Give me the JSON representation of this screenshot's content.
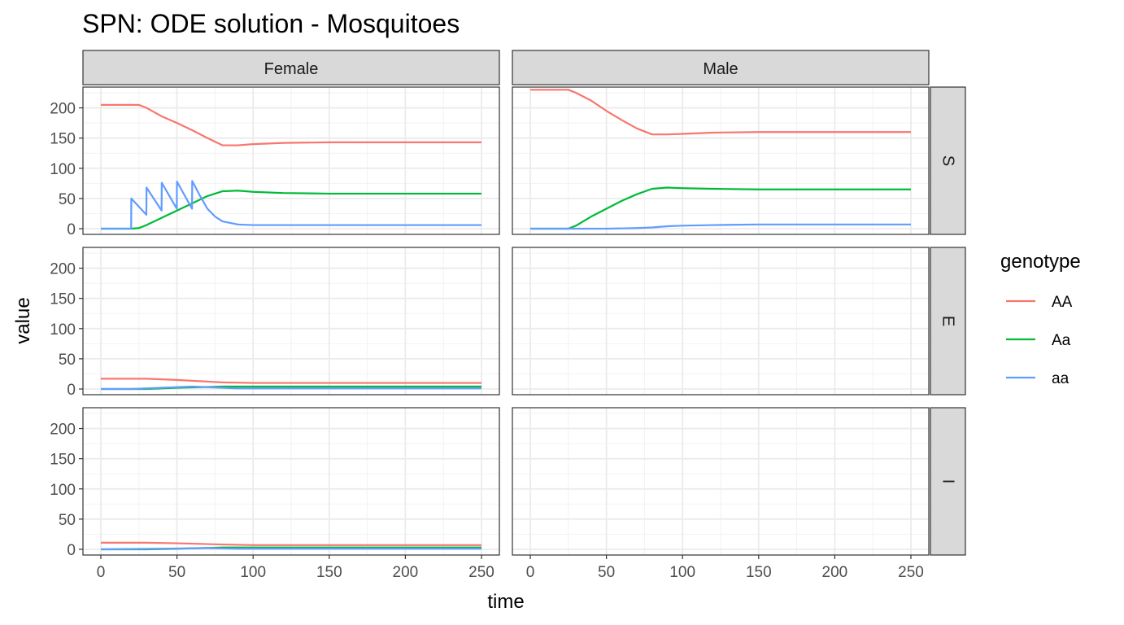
{
  "chart_data": {
    "type": "line",
    "title": "SPN: ODE solution - Mosquitoes",
    "xlabel": "time",
    "ylabel": "value",
    "xlim": [
      0,
      250
    ],
    "ylim": [
      0,
      225
    ],
    "x_ticks": [
      0,
      50,
      100,
      150,
      200,
      250
    ],
    "y_ticks": [
      0,
      50,
      100,
      150,
      200
    ],
    "grid": true,
    "legend": {
      "title": "genotype",
      "placement": "right",
      "entries": [
        {
          "name": "AA",
          "color": "#F8766D"
        },
        {
          "name": "Aa",
          "color": "#00BA38"
        },
        {
          "name": "aa",
          "color": "#619CFF"
        }
      ]
    },
    "facet_cols": [
      "Female",
      "Male"
    ],
    "facet_rows": [
      "S",
      "E",
      "I"
    ],
    "panels": [
      {
        "col": "Female",
        "row": "S",
        "series": [
          {
            "name": "AA",
            "points": [
              [
                0,
                205
              ],
              [
                25,
                205
              ],
              [
                30,
                200
              ],
              [
                40,
                186
              ],
              [
                50,
                175
              ],
              [
                60,
                163
              ],
              [
                70,
                150
              ],
              [
                80,
                138
              ],
              [
                90,
                138
              ],
              [
                100,
                140
              ],
              [
                120,
                142
              ],
              [
                150,
                143
              ],
              [
                200,
                143
              ],
              [
                250,
                143
              ]
            ]
          },
          {
            "name": "Aa",
            "points": [
              [
                0,
                0
              ],
              [
                20,
                0
              ],
              [
                25,
                1
              ],
              [
                30,
                6
              ],
              [
                40,
                18
              ],
              [
                50,
                30
              ],
              [
                60,
                42
              ],
              [
                70,
                54
              ],
              [
                80,
                62
              ],
              [
                90,
                63
              ],
              [
                100,
                61
              ],
              [
                120,
                59
              ],
              [
                150,
                58
              ],
              [
                200,
                58
              ],
              [
                250,
                58
              ]
            ]
          },
          {
            "name": "aa",
            "points": [
              [
                0,
                0
              ],
              [
                19.9,
                0
              ],
              [
                20,
                50
              ],
              [
                29.9,
                23
              ],
              [
                30,
                68
              ],
              [
                39.9,
                30
              ],
              [
                40,
                76
              ],
              [
                49.9,
                33
              ],
              [
                50,
                78
              ],
              [
                59.9,
                33
              ],
              [
                60,
                79
              ],
              [
                65,
                55
              ],
              [
                70,
                33
              ],
              [
                75,
                20
              ],
              [
                80,
                12
              ],
              [
                90,
                7
              ],
              [
                100,
                6
              ],
              [
                150,
                6
              ],
              [
                200,
                6
              ],
              [
                250,
                6
              ]
            ]
          }
        ]
      },
      {
        "col": "Male",
        "row": "S",
        "series": [
          {
            "name": "AA",
            "points": [
              [
                0,
                230
              ],
              [
                25,
                230
              ],
              [
                30,
                225
              ],
              [
                40,
                212
              ],
              [
                50,
                195
              ],
              [
                60,
                180
              ],
              [
                70,
                166
              ],
              [
                80,
                156
              ],
              [
                90,
                156
              ],
              [
                100,
                157
              ],
              [
                120,
                159
              ],
              [
                150,
                160
              ],
              [
                200,
                160
              ],
              [
                250,
                160
              ]
            ]
          },
          {
            "name": "Aa",
            "points": [
              [
                0,
                0
              ],
              [
                25,
                0
              ],
              [
                30,
                5
              ],
              [
                40,
                20
              ],
              [
                50,
                33
              ],
              [
                60,
                46
              ],
              [
                70,
                57
              ],
              [
                80,
                66
              ],
              [
                90,
                68
              ],
              [
                100,
                67
              ],
              [
                120,
                66
              ],
              [
                150,
                65
              ],
              [
                200,
                65
              ],
              [
                250,
                65
              ]
            ]
          },
          {
            "name": "aa",
            "points": [
              [
                0,
                0
              ],
              [
                50,
                0
              ],
              [
                70,
                1
              ],
              [
                80,
                2
              ],
              [
                90,
                4
              ],
              [
                100,
                5
              ],
              [
                120,
                6
              ],
              [
                150,
                7
              ],
              [
                200,
                7
              ],
              [
                250,
                7
              ]
            ]
          }
        ]
      },
      {
        "col": "Female",
        "row": "E",
        "series": [
          {
            "name": "AA",
            "points": [
              [
                0,
                17
              ],
              [
                30,
                17
              ],
              [
                50,
                15
              ],
              [
                80,
                11
              ],
              [
                100,
                10
              ],
              [
                150,
                10
              ],
              [
                200,
                10
              ],
              [
                250,
                10
              ]
            ]
          },
          {
            "name": "Aa",
            "points": [
              [
                0,
                0
              ],
              [
                30,
                0
              ],
              [
                50,
                2
              ],
              [
                80,
                4
              ],
              [
                100,
                4
              ],
              [
                150,
                4
              ],
              [
                200,
                4
              ],
              [
                250,
                4
              ]
            ]
          },
          {
            "name": "aa",
            "points": [
              [
                0,
                0
              ],
              [
                20,
                0
              ],
              [
                40,
                2
              ],
              [
                60,
                4
              ],
              [
                70,
                3
              ],
              [
                90,
                1
              ],
              [
                100,
                1
              ],
              [
                150,
                1
              ],
              [
                200,
                1
              ],
              [
                250,
                1
              ]
            ]
          }
        ]
      },
      {
        "col": "Male",
        "row": "E",
        "series": []
      },
      {
        "col": "Female",
        "row": "I",
        "series": [
          {
            "name": "AA",
            "points": [
              [
                0,
                11
              ],
              [
                30,
                11
              ],
              [
                50,
                10
              ],
              [
                80,
                8
              ],
              [
                100,
                7
              ],
              [
                150,
                7
              ],
              [
                200,
                7
              ],
              [
                250,
                7
              ]
            ]
          },
          {
            "name": "Aa",
            "points": [
              [
                0,
                0
              ],
              [
                30,
                0
              ],
              [
                50,
                1
              ],
              [
                80,
                3
              ],
              [
                100,
                3
              ],
              [
                150,
                3
              ],
              [
                200,
                3
              ],
              [
                250,
                3
              ]
            ]
          },
          {
            "name": "aa",
            "points": [
              [
                0,
                0
              ],
              [
                40,
                1
              ],
              [
                70,
                2
              ],
              [
                90,
                1
              ],
              [
                100,
                1
              ],
              [
                150,
                1
              ],
              [
                200,
                1
              ],
              [
                250,
                1
              ]
            ]
          }
        ]
      },
      {
        "col": "Male",
        "row": "I",
        "series": []
      }
    ]
  }
}
